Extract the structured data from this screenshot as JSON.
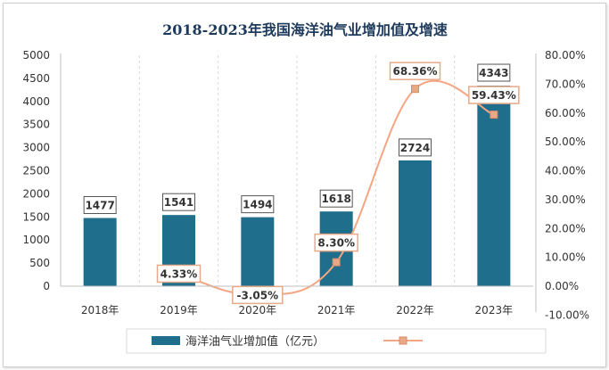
{
  "chart_data": {
    "type": "bar",
    "title": "2018-2023年我国海洋油气业增加值及增速",
    "categories": [
      "2018年",
      "2019年",
      "2020年",
      "2021年",
      "2022年",
      "2023年"
    ],
    "series": [
      {
        "name": "海洋油气业增加值（亿元）",
        "type": "bar",
        "axis": "left",
        "color": "#1f6e8c",
        "values": [
          1477,
          1541,
          1494,
          1618,
          2724,
          4343
        ]
      },
      {
        "name": "",
        "type": "line",
        "axis": "right",
        "color": "#f4a582",
        "values": [
          null,
          4.33,
          -3.05,
          8.3,
          68.36,
          59.43
        ],
        "labels": [
          "",
          "4.33%",
          "-3.05%",
          "8.30%",
          "68.36%",
          "59.43%"
        ]
      }
    ],
    "y_left": {
      "range": [
        0,
        5000
      ],
      "ticks": [
        "0",
        "500",
        "1000",
        "1500",
        "2000",
        "2500",
        "3000",
        "3500",
        "4000",
        "4500",
        "5000"
      ]
    },
    "y_right": {
      "range": [
        -10,
        80
      ],
      "ticks": [
        "-10.00%",
        "0.00%",
        "10.00%",
        "20.00%",
        "30.00%",
        "40.00%",
        "50.00%",
        "60.00%",
        "70.00%",
        "80.00%"
      ]
    },
    "grid": true,
    "legend_position": "bottom"
  }
}
